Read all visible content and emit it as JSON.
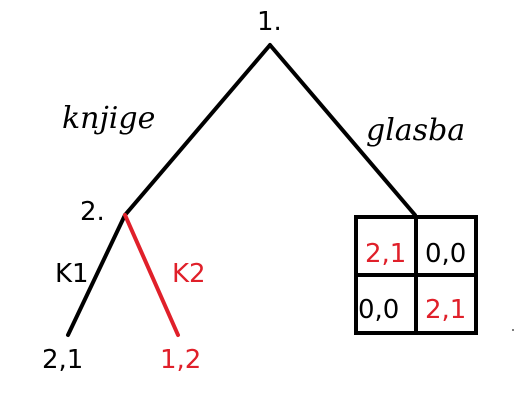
{
  "colors": {
    "ink": "#000000",
    "accent": "#e0202a"
  },
  "root": {
    "label": "1."
  },
  "branches": {
    "left_label": "knjige",
    "right_label": "glasba"
  },
  "node2": {
    "label": "2."
  },
  "subbranches": {
    "k1_label": "K1",
    "k2_label": "K2"
  },
  "payoffs": {
    "k1": "2,1",
    "k2": "1,2"
  },
  "matrix": {
    "cells": [
      [
        "2,1",
        "0,0"
      ],
      [
        "0,0",
        "2,1"
      ]
    ],
    "highlight": [
      [
        true,
        false
      ],
      [
        false,
        true
      ]
    ]
  }
}
